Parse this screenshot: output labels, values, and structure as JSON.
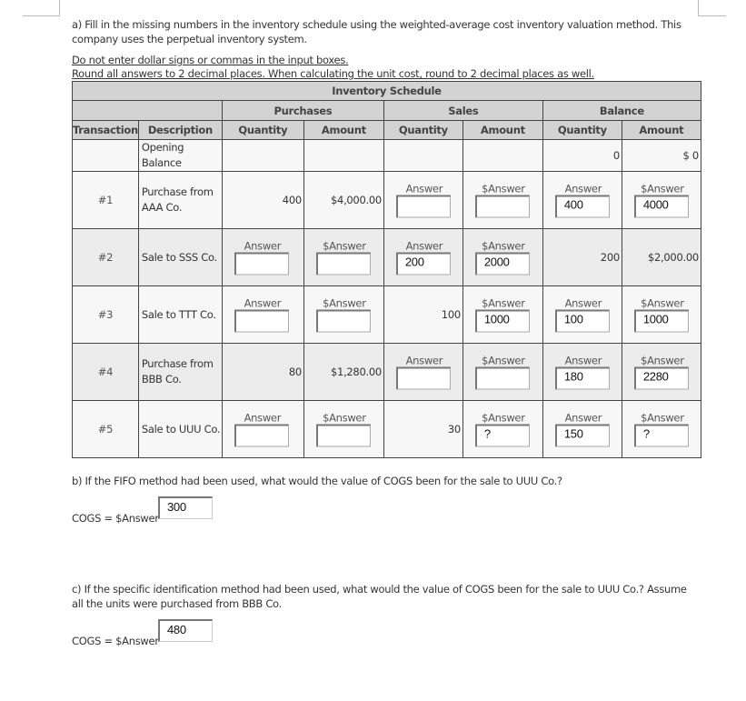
{
  "instructions": {
    "part_a": "a) Fill in the missing numbers in the inventory schedule using the weighted-average cost inventory valuation method. This company uses the perpetual inventory system.",
    "note1": "Do not enter dollar signs or commas in the input boxes.",
    "note2": "Round all answers to 2 decimal places. When calculating the unit cost, round to 2 decimal places as well."
  },
  "schedule": {
    "title": "Inventory Schedule",
    "groups": [
      "Purchases",
      "Sales",
      "Balance"
    ],
    "columns": [
      "Transaction",
      "Description",
      "Quantity",
      "Amount",
      "Quantity",
      "Amount",
      "Quantity",
      "Amount"
    ],
    "opening": {
      "description": "Opening Balance",
      "balance_quantity": "0",
      "balance_amount": "$ 0"
    },
    "rows": [
      {
        "transaction": "#1",
        "description": "Purchase from AAA Co.",
        "shade": "light",
        "cells": [
          {
            "text": "400"
          },
          {
            "text": "$4,000.00"
          },
          {
            "label": "Answer",
            "value": ""
          },
          {
            "label": "$Answer",
            "value": ""
          },
          {
            "label": "Answer",
            "value": "400"
          },
          {
            "label": "$Answer",
            "value": "4000"
          }
        ]
      },
      {
        "transaction": "#2",
        "description": "Sale to SSS Co.",
        "shade": "dark",
        "cells": [
          {
            "label": "Answer",
            "value": ""
          },
          {
            "label": "$Answer",
            "value": ""
          },
          {
            "label": "Answer",
            "value": "200"
          },
          {
            "label": "$Answer",
            "value": "2000"
          },
          {
            "text": "200"
          },
          {
            "text": "$2,000.00"
          }
        ]
      },
      {
        "transaction": "#3",
        "description": "Sale to TTT Co.",
        "shade": "light",
        "cells": [
          {
            "label": "Answer",
            "value": ""
          },
          {
            "label": "$Answer",
            "value": ""
          },
          {
            "text": "100"
          },
          {
            "label": "$Answer",
            "value": "1000"
          },
          {
            "label": "Answer",
            "value": "100"
          },
          {
            "label": "$Answer",
            "value": "1000"
          }
        ]
      },
      {
        "transaction": "#4",
        "description": "Purchase from BBB Co.",
        "shade": "dark",
        "cells": [
          {
            "text": "80"
          },
          {
            "text": "$1,280.00"
          },
          {
            "label": "Answer",
            "value": ""
          },
          {
            "label": "$Answer",
            "value": ""
          },
          {
            "label": "Answer",
            "value": "180"
          },
          {
            "label": "$Answer",
            "value": "2280"
          }
        ]
      },
      {
        "transaction": "#5",
        "description": "Sale to UUU Co.",
        "shade": "light",
        "cells": [
          {
            "label": "Answer",
            "value": ""
          },
          {
            "label": "$Answer",
            "value": ""
          },
          {
            "text": "30"
          },
          {
            "label": "$Answer",
            "value": "?"
          },
          {
            "label": "Answer",
            "value": "150"
          },
          {
            "label": "$Answer",
            "value": "?"
          }
        ]
      }
    ]
  },
  "part_b": {
    "question": "b) If the FIFO method had been used, what would the value of COGS been for the sale to UUU Co.?",
    "label": "COGS = $Answer",
    "value": "300"
  },
  "part_c": {
    "question": "c) If the specific identification method had been used, what would the value of COGS been for the sale to UUU Co.? Assume all the units were purchased from BBB Co.",
    "label": "COGS = $Answer",
    "value": "480"
  }
}
